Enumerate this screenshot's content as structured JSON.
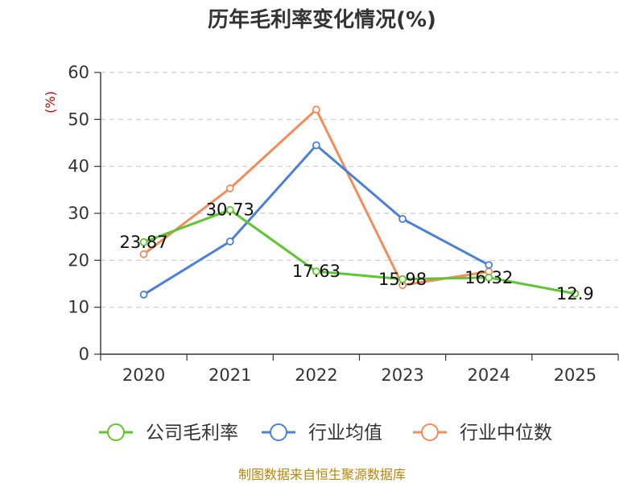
{
  "chart_data": {
    "type": "line",
    "title": "历年毛利率变化情况(%)",
    "unit_label": "(%)",
    "categories": [
      "2020",
      "2021",
      "2022",
      "2023",
      "2024",
      "2025"
    ],
    "ylim": [
      0,
      60
    ],
    "yticks": [
      0,
      10,
      20,
      30,
      40,
      50,
      60
    ],
    "grid": true,
    "legend_position": "bottom",
    "series": [
      {
        "name": "公司毛利率",
        "color": "#5ec72f",
        "values": [
          23.87,
          30.73,
          17.63,
          15.98,
          16.32,
          12.9
        ],
        "labels": [
          "23.87",
          "30.73",
          "17.63",
          "15.98",
          "16.32",
          "12.9"
        ]
      },
      {
        "name": "行业均值",
        "color": "#4a7fda",
        "values": [
          12.7,
          24.0,
          44.5,
          28.8,
          19.0,
          null
        ]
      },
      {
        "name": "行业中位数",
        "color": "#f48c5a",
        "values": [
          21.3,
          35.3,
          52.1,
          14.7,
          17.6,
          null
        ]
      }
    ]
  },
  "source": "制图数据来自恒生聚源数据库"
}
